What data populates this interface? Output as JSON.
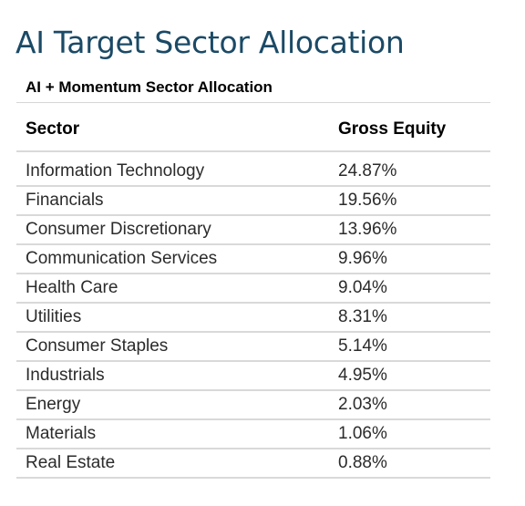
{
  "title": "AI Target Sector Allocation",
  "table": {
    "caption": "AI + Momentum Sector Allocation",
    "headers": {
      "sector": "Sector",
      "gross_equity": "Gross Equity"
    },
    "rows": [
      {
        "sector": "Information Technology",
        "gross_equity": "24.87%"
      },
      {
        "sector": "Financials",
        "gross_equity": "19.56%"
      },
      {
        "sector": "Consumer Discretionary",
        "gross_equity": "13.96%"
      },
      {
        "sector": "Communication Services",
        "gross_equity": "9.96%"
      },
      {
        "sector": "Health Care",
        "gross_equity": "9.04%"
      },
      {
        "sector": "Utilities",
        "gross_equity": "8.31%"
      },
      {
        "sector": "Consumer Staples",
        "gross_equity": "5.14%"
      },
      {
        "sector": "Industrials",
        "gross_equity": "4.95%"
      },
      {
        "sector": "Energy",
        "gross_equity": "2.03%"
      },
      {
        "sector": "Materials",
        "gross_equity": "1.06%"
      },
      {
        "sector": "Real Estate",
        "gross_equity": "0.88%"
      }
    ]
  },
  "colors": {
    "title": "#1b4a66",
    "rule": "#d9d9d9"
  }
}
